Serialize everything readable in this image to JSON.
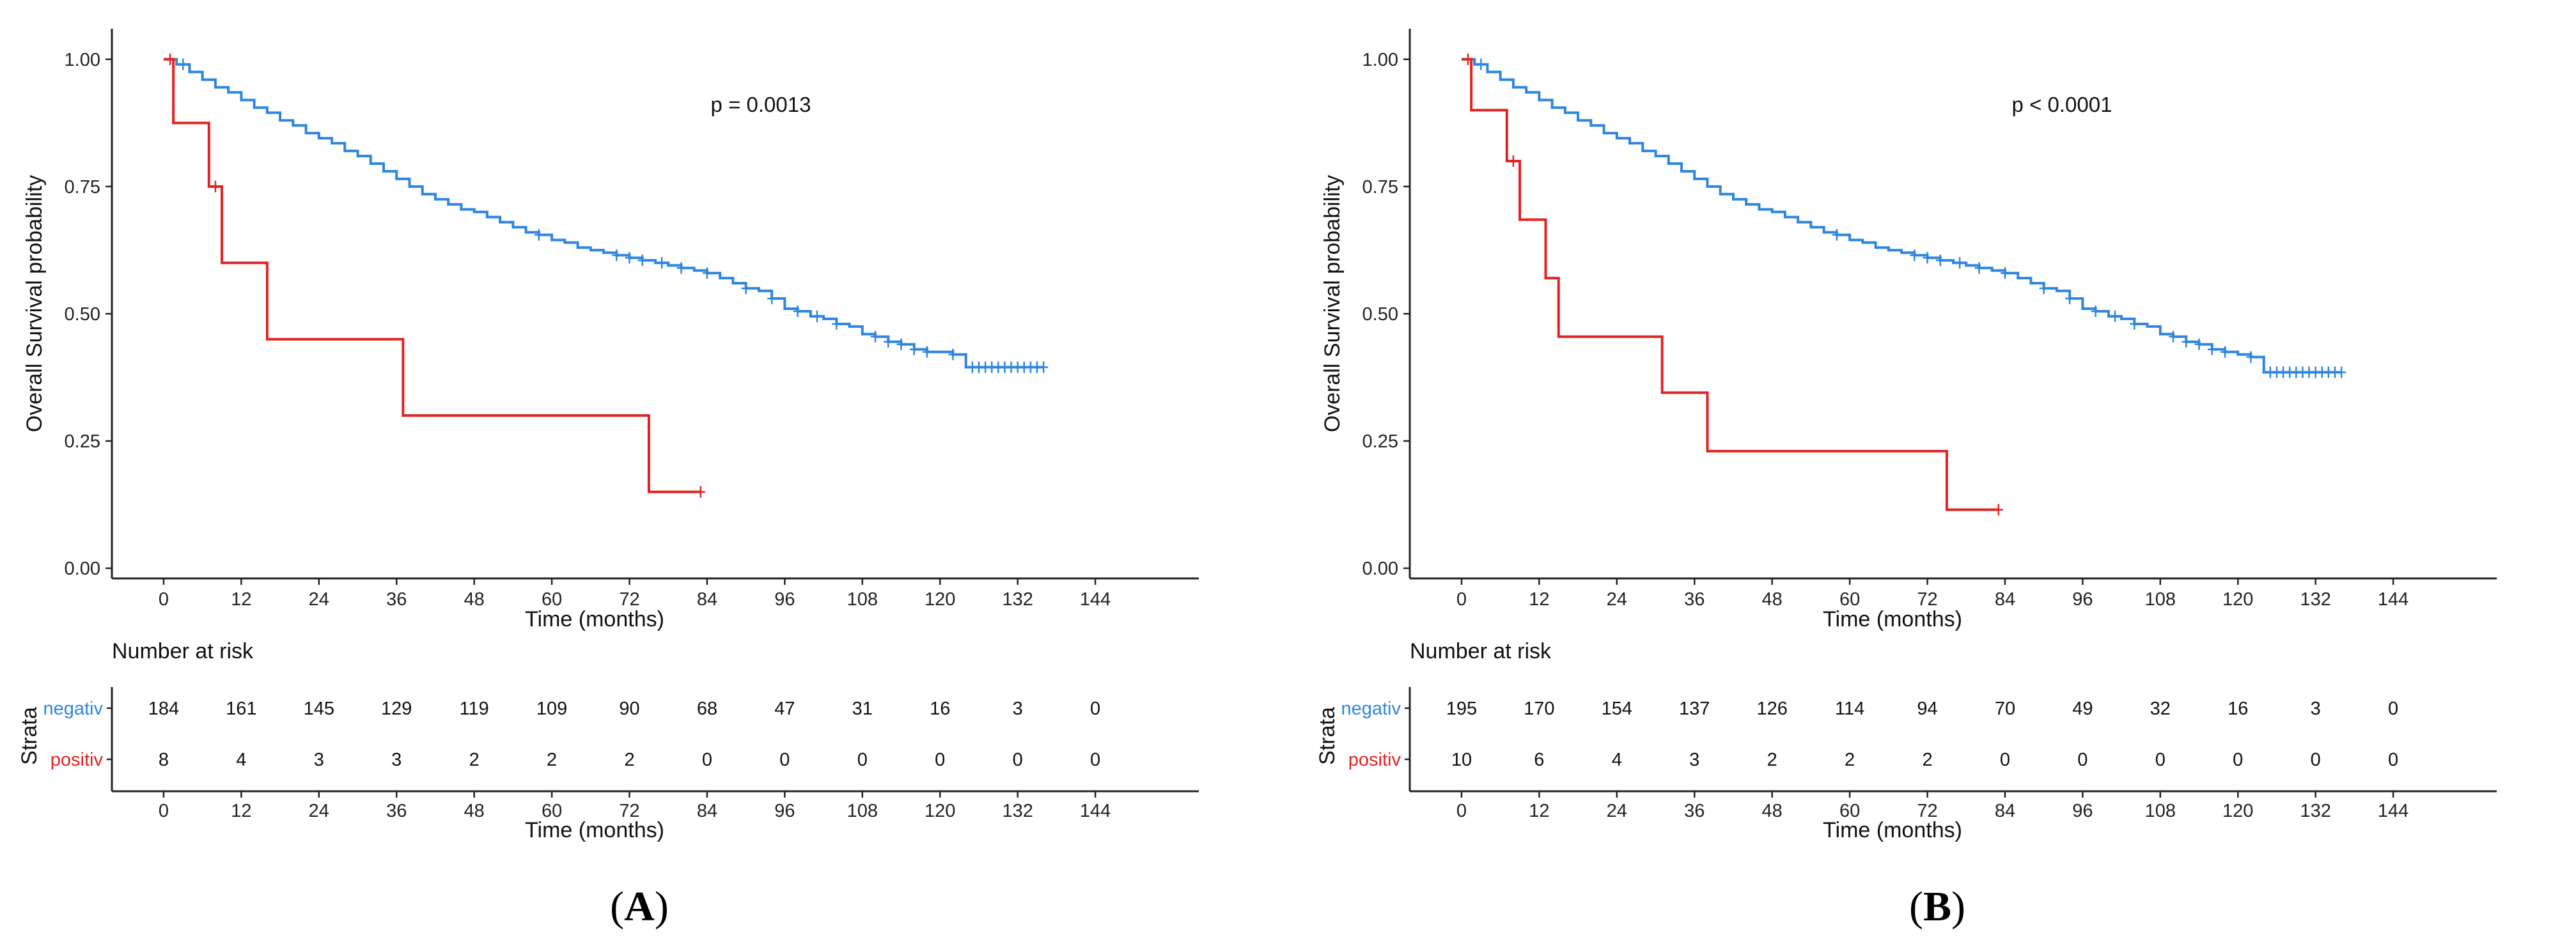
{
  "figure": {
    "colors": {
      "negativ": "#2e86de",
      "positiv": "#e02424",
      "axis": "#222222"
    }
  },
  "chart_data": [
    {
      "type": "line",
      "subtype": "kaplan-meier",
      "panel_label": "A",
      "annotation": "p = 0.0013",
      "xlabel": "Time (months)",
      "ylabel": "Overall Survival probability",
      "xlim": [
        -8,
        160
      ],
      "ylim": [
        -0.02,
        1.06
      ],
      "xticks": [
        0,
        12,
        24,
        36,
        48,
        60,
        72,
        84,
        96,
        108,
        120,
        132,
        144
      ],
      "yticks": [
        0.0,
        0.25,
        0.5,
        0.75,
        1.0
      ],
      "ytick_labels": [
        "0.00",
        "0.25",
        "0.50",
        "0.75",
        "1.00"
      ],
      "grid": false,
      "series": [
        {
          "name": "negativ",
          "color": "#2e86de",
          "x": [
            0,
            2,
            4,
            6,
            8,
            10,
            12,
            14,
            16,
            18,
            20,
            22,
            24,
            26,
            28,
            30,
            32,
            34,
            36,
            38,
            40,
            42,
            44,
            46,
            48,
            50,
            52,
            54,
            56,
            58,
            60,
            62,
            64,
            66,
            68,
            70,
            72,
            74,
            76,
            78,
            80,
            82,
            84,
            86,
            88,
            90,
            92,
            94,
            96,
            98,
            100,
            102,
            104,
            106,
            108,
            110,
            112,
            114,
            116,
            118,
            120,
            122,
            124,
            126,
            128,
            130,
            132,
            134,
            136
          ],
          "y": [
            1.0,
            0.99,
            0.975,
            0.96,
            0.945,
            0.935,
            0.92,
            0.905,
            0.895,
            0.88,
            0.87,
            0.855,
            0.845,
            0.835,
            0.82,
            0.81,
            0.795,
            0.78,
            0.765,
            0.75,
            0.735,
            0.725,
            0.715,
            0.705,
            0.7,
            0.69,
            0.68,
            0.67,
            0.66,
            0.655,
            0.645,
            0.64,
            0.63,
            0.625,
            0.62,
            0.615,
            0.61,
            0.605,
            0.6,
            0.595,
            0.59,
            0.585,
            0.58,
            0.57,
            0.56,
            0.55,
            0.545,
            0.53,
            0.51,
            0.505,
            0.495,
            0.49,
            0.48,
            0.475,
            0.46,
            0.455,
            0.445,
            0.44,
            0.43,
            0.425,
            0.425,
            0.42,
            0.395,
            0.395,
            0.395,
            0.395,
            0.395,
            0.395,
            0.395
          ],
          "censor_x": [
            3,
            58,
            70,
            72,
            74,
            77,
            80,
            84,
            90,
            94,
            98,
            101,
            104,
            110,
            112,
            114,
            116,
            118,
            122,
            125,
            126,
            127,
            128,
            129,
            130,
            131,
            132,
            133,
            134,
            135,
            136
          ]
        },
        {
          "name": "positiv",
          "color": "#e02424",
          "x": [
            0,
            1.5,
            7,
            8.5,
            9,
            16,
            37,
            75,
            83
          ],
          "y": [
            1.0,
            0.875,
            0.75,
            0.75,
            0.6,
            0.45,
            0.3,
            0.15,
            0.15
          ],
          "censor_x": [
            1,
            8,
            83
          ]
        }
      ],
      "risk_table": {
        "title": "Number at risk",
        "ylabel": "Strata",
        "xlabel": "Time (months)",
        "times": [
          0,
          12,
          24,
          36,
          48,
          60,
          72,
          84,
          96,
          108,
          120,
          132,
          144
        ],
        "rows": [
          {
            "name": "negativ",
            "color": "#2e86de",
            "values": [
              184,
              161,
              145,
              129,
              119,
              109,
              90,
              68,
              47,
              31,
              16,
              3,
              0
            ]
          },
          {
            "name": "positiv",
            "color": "#e02424",
            "values": [
              8,
              4,
              3,
              3,
              2,
              2,
              2,
              0,
              0,
              0,
              0,
              0,
              0
            ]
          }
        ]
      }
    },
    {
      "type": "line",
      "subtype": "kaplan-meier",
      "panel_label": "B",
      "annotation": "p < 0.0001",
      "xlabel": "Time (months)",
      "ylabel": "Overall Survival probability",
      "xlim": [
        -8,
        160
      ],
      "ylim": [
        -0.02,
        1.06
      ],
      "xticks": [
        0,
        12,
        24,
        36,
        48,
        60,
        72,
        84,
        96,
        108,
        120,
        132,
        144
      ],
      "yticks": [
        0.0,
        0.25,
        0.5,
        0.75,
        1.0
      ],
      "ytick_labels": [
        "0.00",
        "0.25",
        "0.50",
        "0.75",
        "1.00"
      ],
      "grid": false,
      "series": [
        {
          "name": "negativ",
          "color": "#2e86de",
          "x": [
            0,
            2,
            4,
            6,
            8,
            10,
            12,
            14,
            16,
            18,
            20,
            22,
            24,
            26,
            28,
            30,
            32,
            34,
            36,
            38,
            40,
            42,
            44,
            46,
            48,
            50,
            52,
            54,
            56,
            58,
            60,
            62,
            64,
            66,
            68,
            70,
            72,
            74,
            76,
            78,
            80,
            82,
            84,
            86,
            88,
            90,
            92,
            94,
            96,
            98,
            100,
            102,
            104,
            106,
            108,
            110,
            112,
            114,
            116,
            118,
            120,
            122,
            124,
            126,
            128,
            130,
            132,
            134,
            136
          ],
          "y": [
            1.0,
            0.99,
            0.975,
            0.96,
            0.945,
            0.935,
            0.92,
            0.905,
            0.895,
            0.88,
            0.87,
            0.855,
            0.845,
            0.835,
            0.82,
            0.81,
            0.795,
            0.78,
            0.765,
            0.75,
            0.735,
            0.725,
            0.715,
            0.705,
            0.7,
            0.69,
            0.68,
            0.67,
            0.66,
            0.655,
            0.645,
            0.64,
            0.63,
            0.625,
            0.62,
            0.615,
            0.61,
            0.605,
            0.6,
            0.595,
            0.59,
            0.585,
            0.58,
            0.57,
            0.56,
            0.55,
            0.545,
            0.53,
            0.51,
            0.505,
            0.495,
            0.49,
            0.48,
            0.475,
            0.46,
            0.455,
            0.445,
            0.44,
            0.43,
            0.425,
            0.42,
            0.415,
            0.385,
            0.385,
            0.385,
            0.385,
            0.385,
            0.385,
            0.385
          ],
          "censor_x": [
            3,
            58,
            70,
            72,
            74,
            77,
            80,
            84,
            90,
            94,
            98,
            101,
            104,
            110,
            112,
            114,
            116,
            118,
            122,
            125,
            126,
            127,
            128,
            129,
            130,
            131,
            132,
            133,
            134,
            135,
            136
          ]
        },
        {
          "name": "positiv",
          "color": "#e02424",
          "x": [
            0,
            1.5,
            7,
            8.5,
            9,
            13,
            15,
            31,
            38,
            75,
            83
          ],
          "y": [
            1.0,
            0.9,
            0.8,
            0.8,
            0.685,
            0.57,
            0.455,
            0.345,
            0.23,
            0.115,
            0.115
          ],
          "censor_x": [
            1,
            8,
            83
          ]
        }
      ],
      "risk_table": {
        "title": "Number at risk",
        "ylabel": "Strata",
        "xlabel": "Time (months)",
        "times": [
          0,
          12,
          24,
          36,
          48,
          60,
          72,
          84,
          96,
          108,
          120,
          132,
          144
        ],
        "rows": [
          {
            "name": "negativ",
            "color": "#2e86de",
            "values": [
              195,
              170,
              154,
              137,
              126,
              114,
              94,
              70,
              49,
              32,
              16,
              3,
              0
            ]
          },
          {
            "name": "positiv",
            "color": "#e02424",
            "values": [
              10,
              6,
              4,
              3,
              2,
              2,
              2,
              0,
              0,
              0,
              0,
              0,
              0
            ]
          }
        ]
      }
    }
  ]
}
